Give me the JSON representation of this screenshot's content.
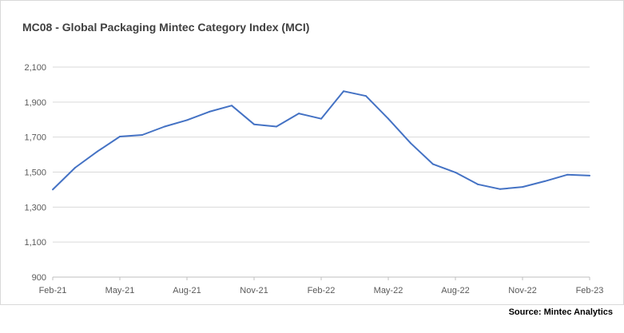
{
  "chart_data": {
    "type": "line",
    "title": "MC08 - Global Packaging Mintec Category Index  (MCI)",
    "source": "Source: Mintec Analytics",
    "xlabel": "",
    "ylabel": "",
    "ylim": [
      900,
      2100
    ],
    "yticks": [
      "900",
      "1,100",
      "1,300",
      "1,500",
      "1,700",
      "1,900",
      "2,100"
    ],
    "ytick_values": [
      900,
      1100,
      1300,
      1500,
      1700,
      1900,
      2100
    ],
    "x": [
      "Feb-21",
      "Mar-21",
      "Apr-21",
      "May-21",
      "Jun-21",
      "Jul-21",
      "Aug-21",
      "Sep-21",
      "Oct-21",
      "Nov-21",
      "Dec-21",
      "Jan-22",
      "Feb-22",
      "Mar-22",
      "Apr-22",
      "May-22",
      "Jun-22",
      "Jul-22",
      "Aug-22",
      "Sep-22",
      "Oct-22",
      "Nov-22",
      "Dec-22",
      "Jan-23",
      "Feb-23"
    ],
    "xticks": [
      "Feb-21",
      "May-21",
      "Aug-21",
      "Nov-21",
      "Feb-22",
      "May-22",
      "Aug-22",
      "Nov-22",
      "Feb-23"
    ],
    "grid": true,
    "legend": "none",
    "series": [
      {
        "color": "#4472c4",
        "values": [
          1400,
          1525,
          1618,
          1703,
          1712,
          1760,
          1797,
          1845,
          1880,
          1773,
          1760,
          1835,
          1805,
          1962,
          1935,
          1805,
          1665,
          1545,
          1498,
          1430,
          1403,
          1415,
          1448,
          1485,
          1480
        ]
      }
    ]
  }
}
